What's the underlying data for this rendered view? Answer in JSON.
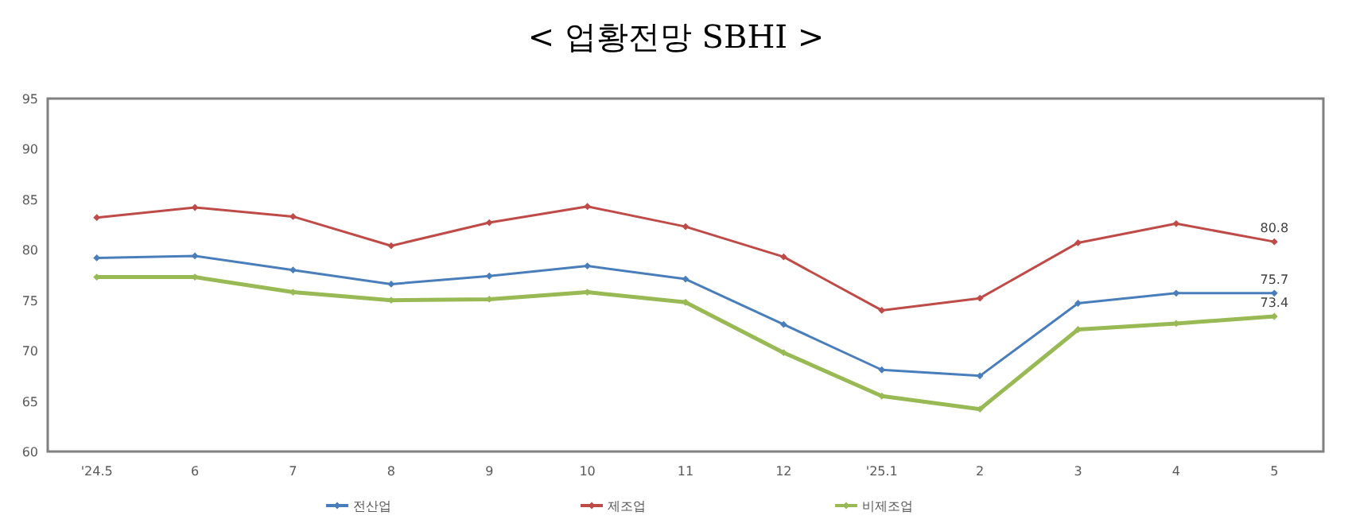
{
  "chart_data": {
    "type": "line",
    "title": "< 업황전망 SBHI >",
    "categories": [
      "'24.5",
      "6",
      "7",
      "8",
      "9",
      "10",
      "11",
      "12",
      "'25.1",
      "2",
      "3",
      "4",
      "5"
    ],
    "series": [
      {
        "name": "전산업",
        "color": "#4a7ebb",
        "values": [
          79.2,
          79.4,
          78.0,
          76.6,
          77.4,
          78.4,
          77.1,
          72.6,
          68.1,
          67.5,
          74.7,
          75.7,
          75.7
        ],
        "value_labels": [
          null,
          null,
          null,
          null,
          null,
          null,
          null,
          null,
          null,
          null,
          null,
          null,
          "75.7"
        ]
      },
      {
        "name": "제조업",
        "color": "#be4b48",
        "values": [
          83.2,
          84.2,
          83.3,
          80.4,
          82.7,
          84.3,
          82.3,
          79.3,
          74.0,
          75.2,
          80.7,
          82.6,
          80.8
        ],
        "value_labels": [
          null,
          null,
          null,
          null,
          null,
          null,
          null,
          null,
          null,
          null,
          null,
          null,
          "80.8"
        ]
      },
      {
        "name": "비제조업",
        "color": "#98b954",
        "values": [
          77.3,
          77.3,
          75.8,
          75.0,
          75.1,
          75.8,
          74.8,
          69.8,
          65.5,
          64.2,
          72.1,
          72.7,
          73.4
        ],
        "value_labels": [
          null,
          null,
          null,
          null,
          null,
          null,
          null,
          null,
          null,
          null,
          null,
          null,
          "73.4"
        ]
      }
    ],
    "ylim": [
      60,
      95
    ],
    "yticks": [
      60,
      65,
      70,
      75,
      80,
      85,
      90,
      95
    ],
    "grid": false,
    "legend": "bottom",
    "marker": "diamond",
    "line_style": "solid"
  }
}
